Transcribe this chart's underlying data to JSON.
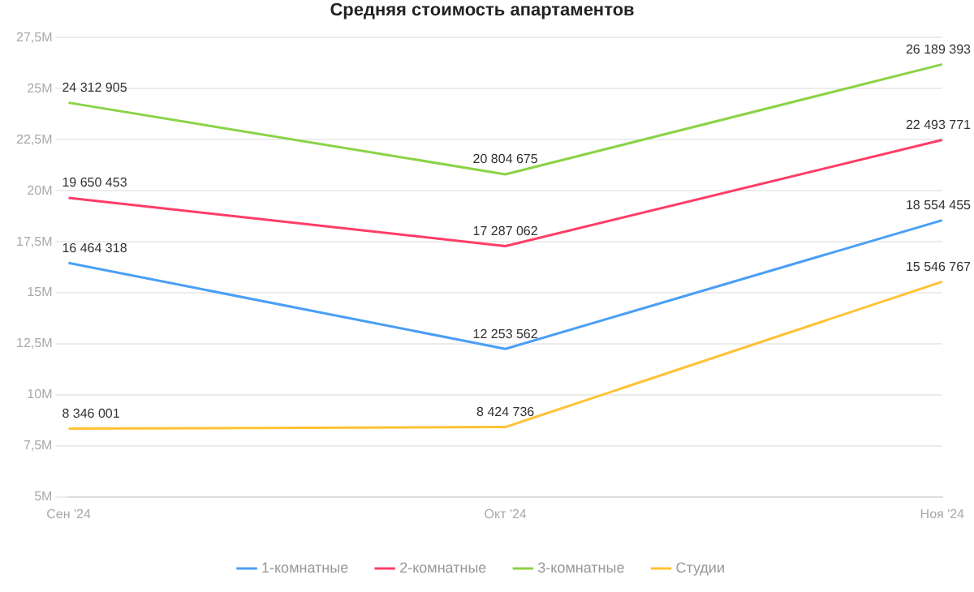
{
  "chart_data": {
    "type": "line",
    "title": "Средняя стоимость апартаментов",
    "categories": [
      "Сен '24",
      "Окт '24",
      "Ноя '24"
    ],
    "series": [
      {
        "name": "1-комнатные",
        "color": "#4a9ff5",
        "values": [
          16464318,
          12253562,
          18554455
        ],
        "value_labels": [
          "16 464 318",
          "12 253 562",
          "18 554 455"
        ]
      },
      {
        "name": "2-комнатные",
        "color": "#ff3d67",
        "values": [
          19650453,
          17287062,
          22493771
        ],
        "value_labels": [
          "19 650 453",
          "17 287 062",
          "22 493 771"
        ]
      },
      {
        "name": "3-комнатные",
        "color": "#8bd346",
        "values": [
          24312905,
          20804675,
          26189393
        ],
        "value_labels": [
          "24 312 905",
          "20 804 675",
          "26 189 393"
        ]
      },
      {
        "name": "Студии",
        "color": "#ffc234",
        "values": [
          8346001,
          8424736,
          15546767
        ],
        "value_labels": [
          "8 346 001",
          "8 424 736",
          "15 546 767"
        ]
      }
    ],
    "ylim": [
      5000000,
      27500000
    ],
    "yticks": [
      {
        "value": 5000000,
        "label": "5M"
      },
      {
        "value": 7500000,
        "label": "7,5M"
      },
      {
        "value": 10000000,
        "label": "10M"
      },
      {
        "value": 12500000,
        "label": "12,5M"
      },
      {
        "value": 15000000,
        "label": "15M"
      },
      {
        "value": 17500000,
        "label": "17,5M"
      },
      {
        "value": 20000000,
        "label": "20M"
      },
      {
        "value": 22500000,
        "label": "22,5M"
      },
      {
        "value": 25000000,
        "label": "25M"
      },
      {
        "value": 27500000,
        "label": "27,5M"
      }
    ],
    "grid": "y",
    "legend": "bottom",
    "marker": "none",
    "line_style": "solid"
  }
}
